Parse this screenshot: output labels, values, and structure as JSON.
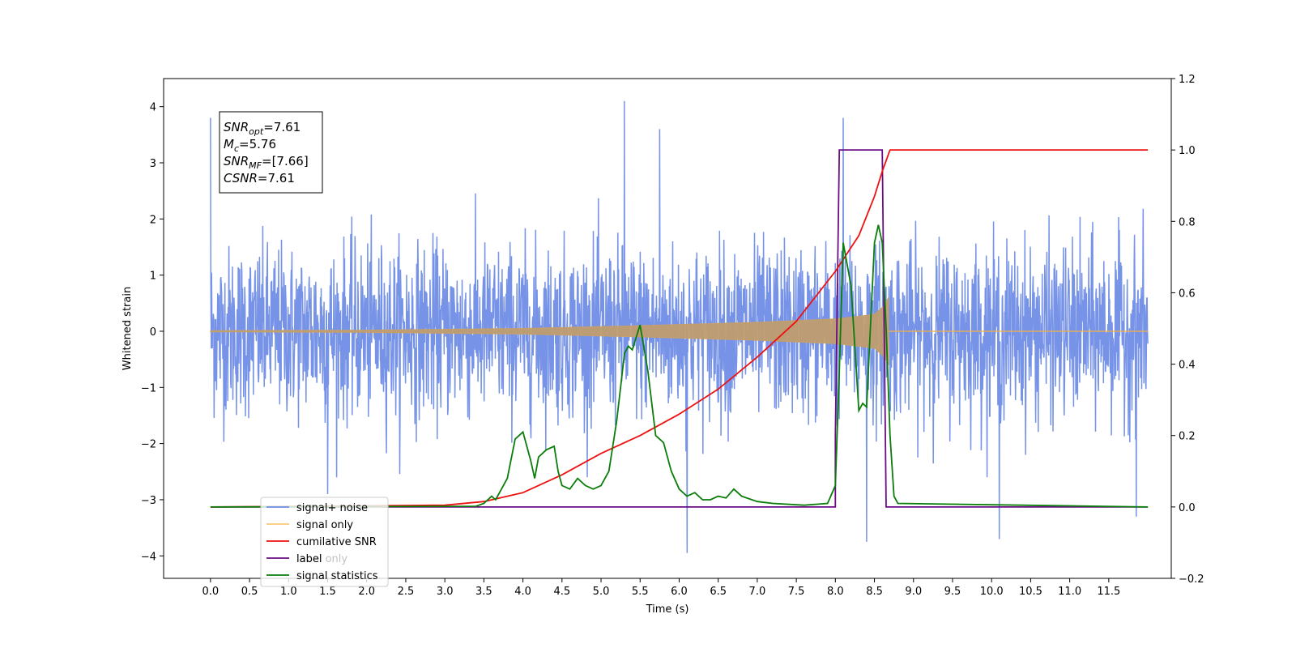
{
  "chart_data": {
    "type": "line",
    "xlabel": "Time (s)",
    "ylabel": "Whitened strain",
    "xlim": [
      -0.6,
      12.3
    ],
    "ylim": [
      -4.4,
      4.5
    ],
    "y2lim": [
      -0.2,
      1.2
    ],
    "x_ticks": [
      "0.0",
      "0.5",
      "1.0",
      "1.5",
      "2.0",
      "2.5",
      "3.0",
      "3.5",
      "4.0",
      "4.5",
      "5.0",
      "5.5",
      "6.0",
      "6.5",
      "7.0",
      "7.5",
      "8.0",
      "8.5",
      "9.0",
      "9.5",
      "10.0",
      "10.5",
      "11.0",
      "11.5"
    ],
    "y_ticks": [
      "4",
      "3",
      "2",
      "1",
      "0",
      "−1",
      "−2",
      "−3",
      "−4"
    ],
    "y2_ticks": [
      "1.2",
      "1.0",
      "0.8",
      "0.6",
      "0.4",
      "0.2",
      "0.0",
      "−0.2"
    ],
    "grid": false,
    "legend_position": "lower-left",
    "stats": [
      {
        "base": "SNR",
        "sub": "opt",
        "rest": "=7.61"
      },
      {
        "base": "M",
        "sub": "c",
        "rest": "=5.76"
      },
      {
        "base": "SNR",
        "sub": "MF",
        "rest": "=[7.66]"
      },
      {
        "base": "CSNR",
        "sub": "",
        "rest": "=7.61"
      }
    ],
    "series": [
      {
        "name": "signal+ noise",
        "color": "#6f8de6",
        "axis": "left",
        "description_kind": "noise",
        "x_range": [
          0.0,
          12.0
        ],
        "typical_range": [
          -1.6,
          1.6
        ],
        "extreme_peaks": [
          {
            "x": 0.0,
            "y": 3.8
          },
          {
            "x": 1.5,
            "y": -2.9
          },
          {
            "x": 5.3,
            "y": 4.1
          },
          {
            "x": 5.75,
            "y": 3.6
          },
          {
            "x": 6.1,
            "y": -3.95
          },
          {
            "x": 8.1,
            "y": 3.8
          },
          {
            "x": 8.4,
            "y": -3.75
          },
          {
            "x": 10.1,
            "y": -3.7
          },
          {
            "x": 11.85,
            "y": -3.3
          }
        ]
      },
      {
        "name": "signal only",
        "color": "#f5b041",
        "axis": "left",
        "envelope": [
          [
            0.0,
            0.01
          ],
          [
            2.0,
            0.02
          ],
          [
            4.0,
            0.05
          ],
          [
            5.5,
            0.1
          ],
          [
            7.0,
            0.16
          ],
          [
            8.0,
            0.22
          ],
          [
            8.5,
            0.3
          ],
          [
            8.62,
            0.45
          ],
          [
            8.68,
            0.6
          ]
        ],
        "after_merger_value": 0.0
      },
      {
        "name": "cumilative SNR",
        "color": "#ee1111",
        "axis": "right",
        "x": [
          0.0,
          3.0,
          3.5,
          4.0,
          4.5,
          5.0,
          5.5,
          6.0,
          6.5,
          7.0,
          7.5,
          8.0,
          8.3,
          8.5,
          8.6,
          8.7,
          12.0
        ],
        "y": [
          0.0,
          0.005,
          0.015,
          0.04,
          0.09,
          0.15,
          0.2,
          0.26,
          0.33,
          0.42,
          0.52,
          0.66,
          0.76,
          0.87,
          0.94,
          1.0,
          1.0
        ]
      },
      {
        "name": "label",
        "color": "#6a0d83",
        "axis": "right",
        "x": [
          0.0,
          8.0,
          8.0,
          8.05,
          8.05,
          8.6,
          8.6,
          8.65,
          8.65,
          12.0
        ],
        "y": [
          0.0,
          0.0,
          0.2,
          1.0,
          1.0,
          1.0,
          1.0,
          0.0,
          0.0,
          0.0
        ]
      },
      {
        "name": "signal statistics",
        "color": "#0a7d0a",
        "axis": "right",
        "x": [
          0.0,
          3.4,
          3.5,
          3.6,
          3.65,
          3.7,
          3.8,
          3.9,
          4.0,
          4.1,
          4.15,
          4.2,
          4.3,
          4.4,
          4.45,
          4.5,
          4.6,
          4.7,
          4.8,
          4.9,
          5.0,
          5.1,
          5.2,
          5.3,
          5.35,
          5.4,
          5.5,
          5.6,
          5.7,
          5.8,
          5.9,
          6.0,
          6.1,
          6.2,
          6.3,
          6.4,
          6.5,
          6.6,
          6.7,
          6.8,
          7.0,
          7.2,
          7.6,
          7.9,
          8.0,
          8.05,
          8.1,
          8.2,
          8.3,
          8.35,
          8.4,
          8.5,
          8.55,
          8.6,
          8.65,
          8.7,
          8.75,
          8.8,
          12.0
        ],
        "y": [
          0.0,
          0.002,
          0.01,
          0.03,
          0.02,
          0.04,
          0.08,
          0.19,
          0.21,
          0.13,
          0.08,
          0.14,
          0.16,
          0.17,
          0.1,
          0.06,
          0.05,
          0.08,
          0.06,
          0.05,
          0.06,
          0.1,
          0.24,
          0.43,
          0.45,
          0.44,
          0.51,
          0.38,
          0.2,
          0.18,
          0.1,
          0.05,
          0.03,
          0.04,
          0.02,
          0.02,
          0.03,
          0.025,
          0.05,
          0.03,
          0.015,
          0.01,
          0.005,
          0.01,
          0.06,
          0.38,
          0.74,
          0.62,
          0.27,
          0.29,
          0.28,
          0.74,
          0.79,
          0.74,
          0.5,
          0.2,
          0.03,
          0.01,
          0.0
        ]
      }
    ],
    "legend_items": [
      "signal+ noise",
      "signal only",
      "cumilative SNR",
      "label",
      "signal statistics"
    ],
    "legend_ghost_text": [
      "label only"
    ]
  }
}
